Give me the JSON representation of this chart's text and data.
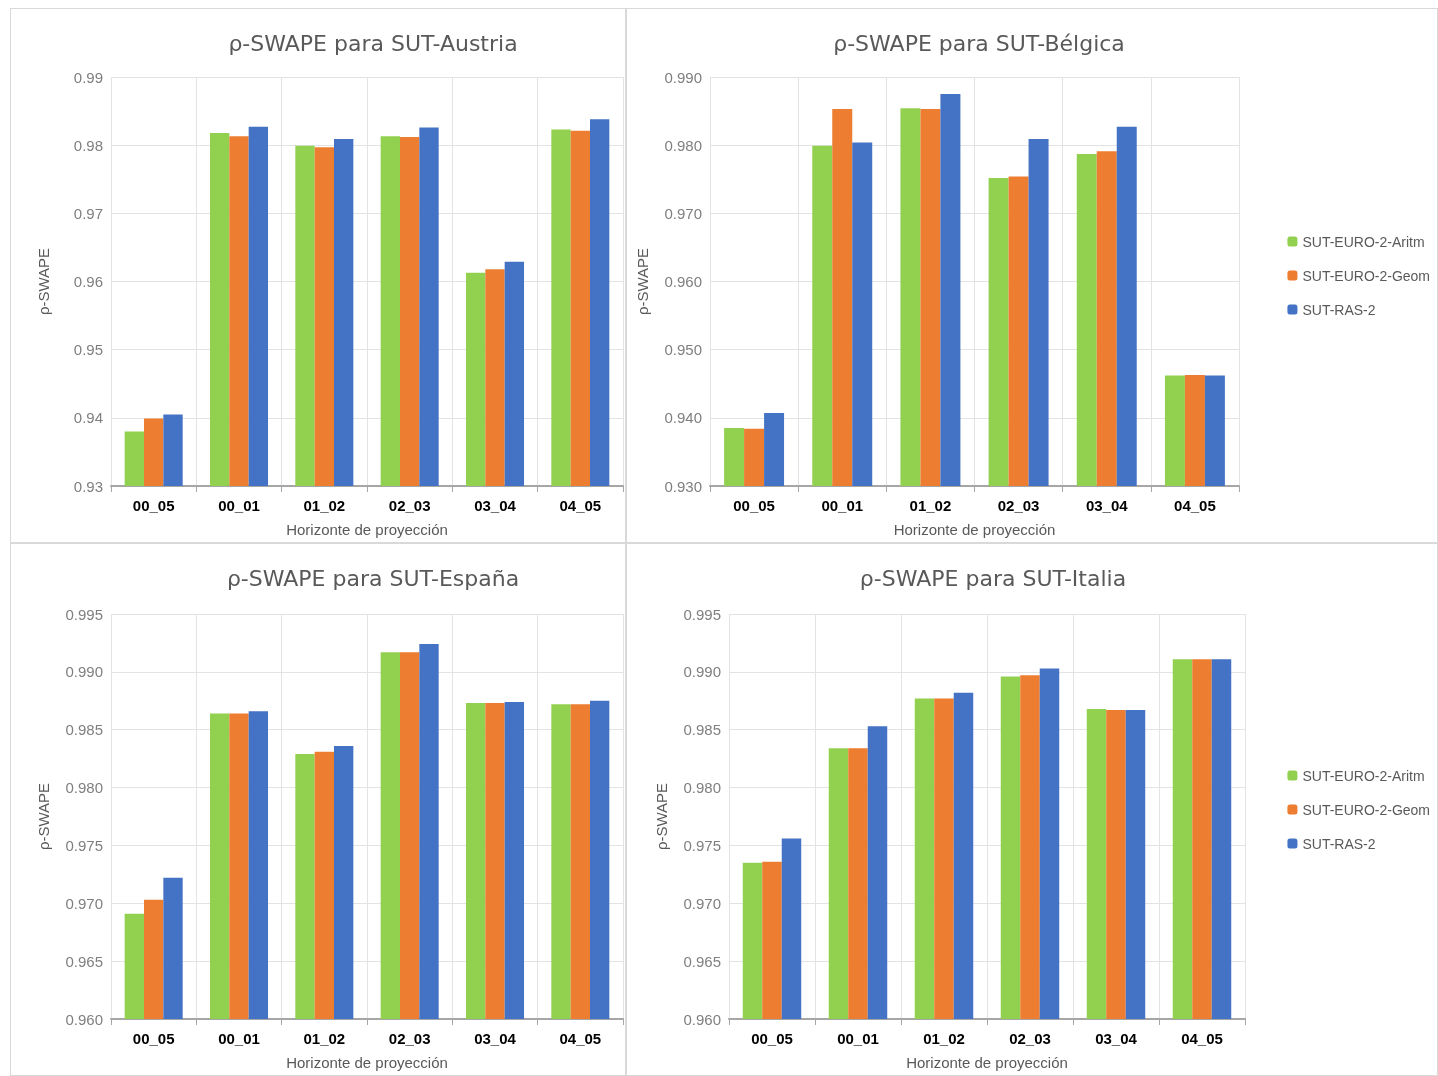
{
  "chart_data": [
    {
      "type": "bar",
      "title": "ρ-SWAPE para SUT-Austria",
      "xlabel": "Horizonte de proyección",
      "ylabel": "ρ-SWAPE",
      "categories": [
        "00_05",
        "00_01",
        "01_02",
        "02_03",
        "03_04",
        "04_05"
      ],
      "series": [
        {
          "color": "#92d050",
          "values": [
            0.938,
            0.9818,
            0.9799,
            0.9813,
            0.9613,
            0.9823
          ]
        },
        {
          "color": "#ed7d31",
          "values": [
            0.9399,
            0.9813,
            0.9797,
            0.9812,
            0.9618,
            0.9821
          ]
        },
        {
          "color": "#4472c4",
          "values": [
            0.9405,
            0.9827,
            0.9809,
            0.9826,
            0.9629,
            0.9838
          ]
        }
      ],
      "ylim": [
        0.93,
        0.99
      ],
      "yticks": [
        0.93,
        0.94,
        0.95,
        0.96,
        0.97,
        0.98,
        0.99
      ],
      "grid": true,
      "legend": false
    },
    {
      "type": "bar",
      "title": "ρ-SWAPE para SUT-Bélgica",
      "xlabel": "Horizonte de proyección",
      "ylabel": "ρ-SWAPE",
      "categories": [
        "00_05",
        "00_01",
        "01_02",
        "02_03",
        "03_04",
        "04_05"
      ],
      "series": [
        {
          "name": "SUT-EURO-2-Aritm",
          "color": "#92d050",
          "values": [
            0.9385,
            0.9799,
            0.9854,
            0.9752,
            0.9787,
            0.9462
          ]
        },
        {
          "name": "SUT-EURO-2-Geom",
          "color": "#ed7d31",
          "values": [
            0.9384,
            0.9853,
            0.9853,
            0.9754,
            0.9791,
            0.9463
          ]
        },
        {
          "name": "SUT-RAS-2",
          "color": "#4472c4",
          "values": [
            0.9407,
            0.9804,
            0.9875,
            0.9809,
            0.9827,
            0.9462
          ]
        }
      ],
      "ylim": [
        0.93,
        0.99
      ],
      "yticks": [
        {
          "value": 0.93,
          "label": "0.930"
        },
        {
          "value": 0.94,
          "label": "0.940"
        },
        {
          "value": 0.95,
          "label": "0.950"
        },
        {
          "value": 0.96,
          "label": "0.960"
        },
        {
          "value": 0.97,
          "label": "0.970"
        },
        {
          "value": 0.98,
          "label": "0.980"
        },
        {
          "value": 0.99,
          "label": "0.990"
        }
      ],
      "grid": true,
      "legend": "right"
    },
    {
      "type": "bar",
      "title": "ρ-SWAPE para SUT-España",
      "xlabel": "Horizonte de proyección",
      "ylabel": "ρ-SWAPE",
      "categories": [
        "00_05",
        "00_01",
        "01_02",
        "02_03",
        "03_04",
        "04_05"
      ],
      "series": [
        {
          "color": "#92d050",
          "values": [
            0.9691,
            0.9864,
            0.9829,
            0.9917,
            0.9873,
            0.9872
          ]
        },
        {
          "color": "#ed7d31",
          "values": [
            0.9703,
            0.9864,
            0.9831,
            0.9917,
            0.9873,
            0.9872
          ]
        },
        {
          "color": "#4472c4",
          "values": [
            0.9722,
            0.9866,
            0.9836,
            0.9924,
            0.9874,
            0.9875
          ]
        }
      ],
      "ylim": [
        0.96,
        0.995
      ],
      "yticks": [
        {
          "value": 0.96,
          "label": "0.960"
        },
        0.965,
        {
          "value": 0.97,
          "label": "0.970"
        },
        0.975,
        {
          "value": 0.98,
          "label": "0.980"
        },
        0.985,
        {
          "value": 0.99,
          "label": "0.990"
        },
        0.995
      ],
      "grid": true,
      "legend": false
    },
    {
      "type": "bar",
      "title": "ρ-SWAPE para SUT-Italia",
      "xlabel": "Horizonte de proyección",
      "ylabel": "ρ-SWAPE",
      "categories": [
        "00_05",
        "00_01",
        "01_02",
        "02_03",
        "03_04",
        "04_05"
      ],
      "series": [
        {
          "name": "SUT-EURO-2-Aritm",
          "color": "#92d050",
          "values": [
            0.9735,
            0.9834,
            0.9877,
            0.9896,
            0.9868,
            0.9911
          ]
        },
        {
          "name": "SUT-EURO-2-Geom",
          "color": "#ed7d31",
          "values": [
            0.9736,
            0.9834,
            0.9877,
            0.9897,
            0.9867,
            0.9911
          ]
        },
        {
          "name": "SUT-RAS-2",
          "color": "#4472c4",
          "values": [
            0.9756,
            0.9853,
            0.9882,
            0.9903,
            0.9867,
            0.9911
          ]
        }
      ],
      "ylim": [
        0.96,
        0.995
      ],
      "yticks": [
        {
          "value": 0.96,
          "label": "0.960"
        },
        0.965,
        {
          "value": 0.97,
          "label": "0.970"
        },
        0.975,
        {
          "value": 0.98,
          "label": "0.980"
        },
        0.985,
        {
          "value": 0.99,
          "label": "0.990"
        },
        0.995
      ],
      "grid": true,
      "legend": "right"
    }
  ]
}
